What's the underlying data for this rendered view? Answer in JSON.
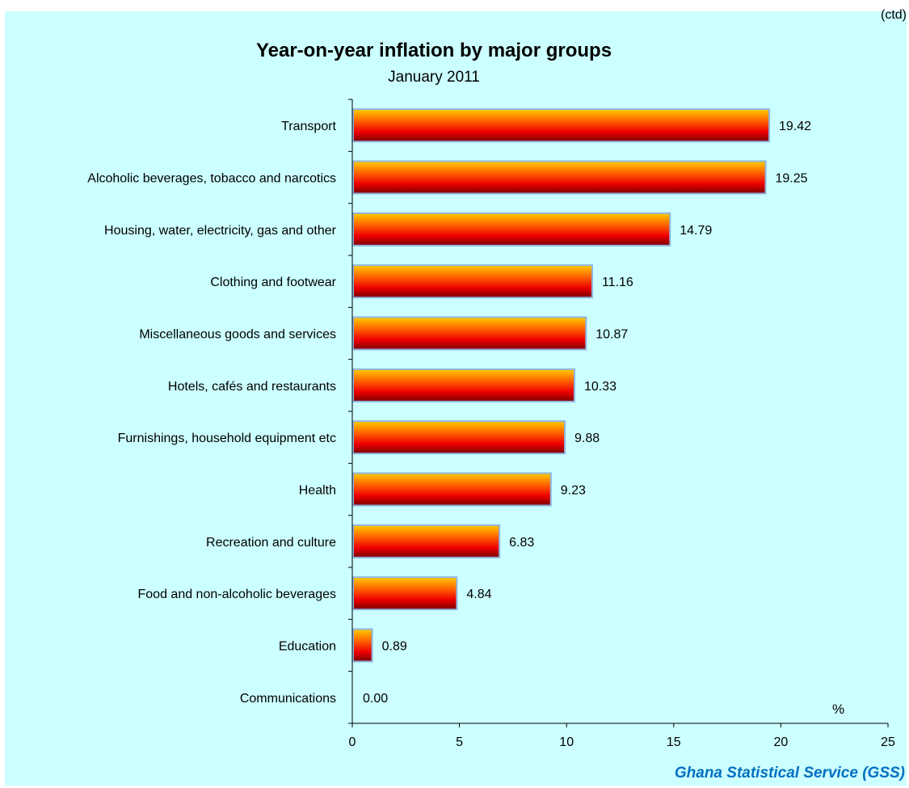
{
  "corner_note": "(ctd)",
  "source": "Ghana Statistical Service (GSS)",
  "colors": {
    "background": "#ccffff",
    "plot_area": "#ccffff",
    "bar_gradient": [
      "#ffcc00",
      "#ff6600",
      "#ee0000",
      "#7a0000"
    ],
    "bar_edge": "#8fb4de",
    "source_text": "#0070c0"
  },
  "chart_data": {
    "type": "bar",
    "orientation": "horizontal",
    "title": "Year-on-year inflation by major groups",
    "subtitle": "January 2011",
    "xlabel": "%",
    "xlim": [
      0,
      25
    ],
    "xticks": [
      "0",
      "5",
      "10",
      "15",
      "20",
      "25"
    ],
    "grid": false,
    "categories": [
      "Transport",
      "Alcoholic beverages, tobacco and narcotics",
      "Housing, water, electricity, gas and other",
      "Clothing and footwear",
      "Miscellaneous goods and services",
      "Hotels, cafés and restaurants",
      "Furnishings, household equipment etc",
      "Health",
      "Recreation and culture",
      "Food and non-alcoholic beverages",
      "Education",
      "Communications"
    ],
    "values": [
      19.42,
      19.25,
      14.79,
      11.16,
      10.87,
      10.33,
      9.88,
      9.23,
      6.83,
      4.84,
      0.89,
      0.0
    ],
    "value_labels": [
      "19.42",
      "19.25",
      "14.79",
      "11.16",
      "10.87",
      "10.33",
      "9.88",
      "9.23",
      "6.83",
      "4.84",
      "0.89",
      "0.00"
    ]
  }
}
